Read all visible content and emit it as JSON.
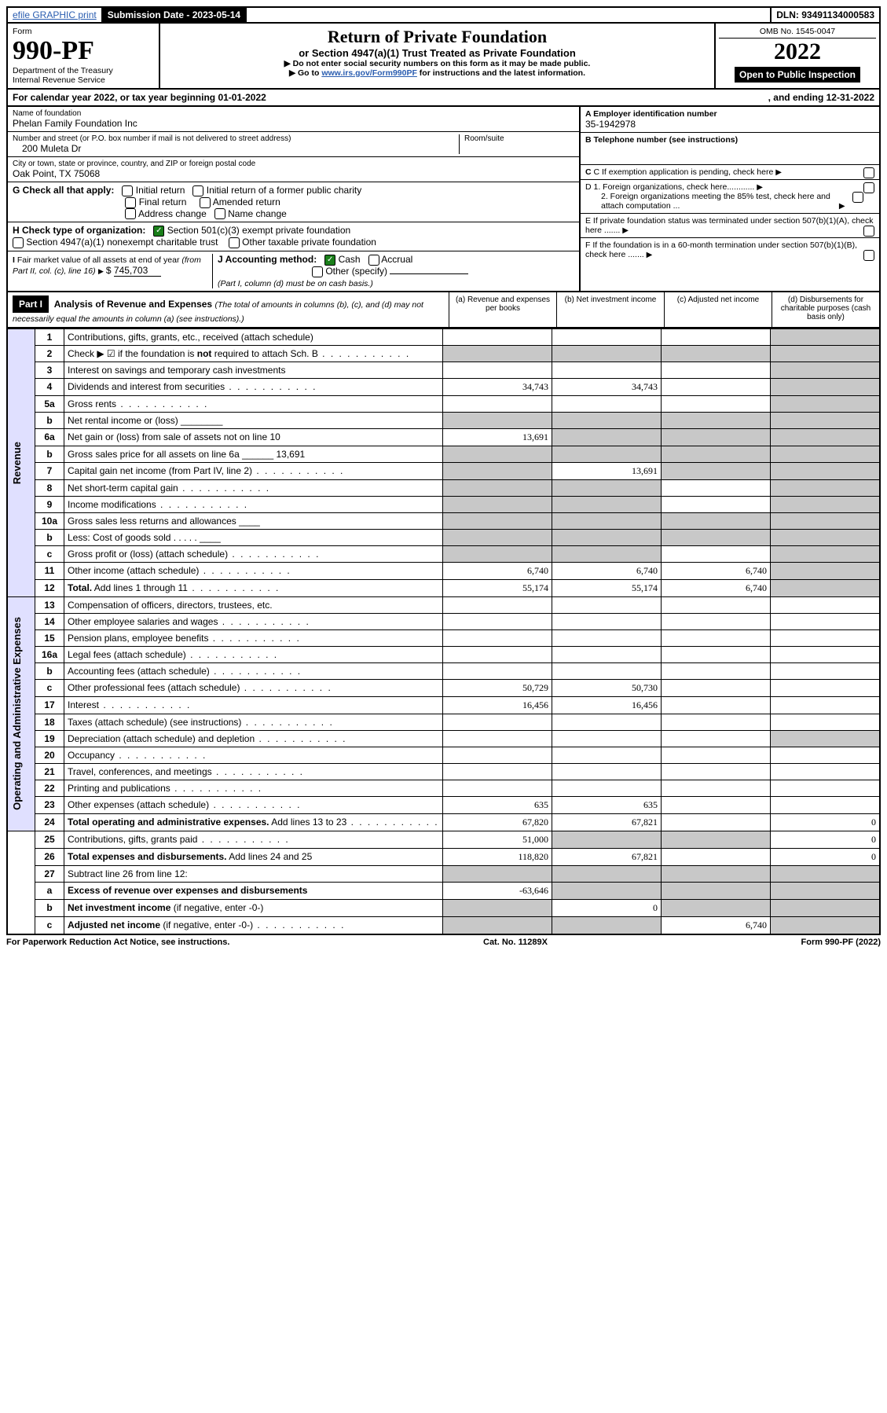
{
  "top": {
    "efile": "efile GRAPHIC print",
    "sublabel": "Submission Date - 2023-05-14",
    "dln": "DLN: 93491134000583"
  },
  "header": {
    "form_label": "Form",
    "form_no": "990-PF",
    "dept1": "Department of the Treasury",
    "dept2": "Internal Revenue Service",
    "title": "Return of Private Foundation",
    "subtitle": "or Section 4947(a)(1) Trust Treated as Private Foundation",
    "warn1": "▶ Do not enter social security numbers on this form as it may be made public.",
    "warn2a": "▶ Go to ",
    "warn2link": "www.irs.gov/Form990PF",
    "warn2b": " for instructions and the latest information.",
    "omb": "OMB No. 1545-0047",
    "year": "2022",
    "open": "Open to Public Inspection"
  },
  "cal": {
    "text": "For calendar year 2022, or tax year beginning 01-01-2022",
    "end": ", and ending 12-31-2022"
  },
  "info": {
    "name_label": "Name of foundation",
    "name": "Phelan Family Foundation Inc",
    "addr_label": "Number and street (or P.O. box number if mail is not delivered to street address)",
    "addr": "200 Muleta Dr",
    "room_label": "Room/suite",
    "city_label": "City or town, state or province, country, and ZIP or foreign postal code",
    "city": "Oak Point, TX  75068",
    "ein_label": "A Employer identification number",
    "ein": "35-1942978",
    "tel_label": "B Telephone number (see instructions)",
    "c_label": "C If exemption application is pending, check here",
    "d1": "D 1. Foreign organizations, check here............",
    "d2": "2. Foreign organizations meeting the 85% test, check here and attach computation ...",
    "e": "E  If private foundation status was terminated under section 507(b)(1)(A), check here .......",
    "f": "F  If the foundation is in a 60-month termination under section 507(b)(1)(B), check here .......",
    "g_label": "G Check all that apply:",
    "g_opts": [
      "Initial return",
      "Initial return of a former public charity",
      "Final return",
      "Amended return",
      "Address change",
      "Name change"
    ],
    "h_label": "H Check type of organization:",
    "h1": "Section 501(c)(3) exempt private foundation",
    "h2": "Section 4947(a)(1) nonexempt charitable trust",
    "h3": "Other taxable private foundation",
    "i_label": "I Fair market value of all assets at end of year (from Part II, col. (c), line 16)",
    "i_val": "745,703",
    "j_label": "J Accounting method:",
    "j_opts": [
      "Cash",
      "Accrual"
    ],
    "j_other": "Other (specify)",
    "j_note": "(Part I, column (d) must be on cash basis.)"
  },
  "part1": {
    "label": "Part I",
    "title": "Analysis of Revenue and Expenses",
    "note": " (The total of amounts in columns (b), (c), and (d) may not necessarily equal the amounts in column (a) (see instructions).)",
    "cols": [
      "(a)  Revenue and expenses per books",
      "(b)  Net investment income",
      "(c)  Adjusted net income",
      "(d)  Disbursements for charitable purposes (cash basis only)"
    ]
  },
  "side": {
    "rev": "Revenue",
    "exp": "Operating and Administrative Expenses"
  },
  "rows": [
    {
      "ln": "1",
      "txt": "Contributions, gifts, grants, etc., received (attach schedule)",
      "a": "",
      "b": "",
      "c": "",
      "d": "",
      "sd": true
    },
    {
      "ln": "2",
      "txt": "Check ▶ ☑ if the foundation is <b>not</b> required to attach Sch. B",
      "dots": true,
      "a": "",
      "b": "",
      "c": "",
      "d": "",
      "shadeAll": true
    },
    {
      "ln": "3",
      "txt": "Interest on savings and temporary cash investments",
      "a": "",
      "b": "",
      "c": "",
      "d": "",
      "sd": true
    },
    {
      "ln": "4",
      "txt": "Dividends and interest from securities",
      "dots": true,
      "a": "34,743",
      "b": "34,743",
      "c": "",
      "d": "",
      "sd": true
    },
    {
      "ln": "5a",
      "txt": "Gross rents",
      "dots": true,
      "a": "",
      "b": "",
      "c": "",
      "d": "",
      "sd": true
    },
    {
      "ln": "b",
      "txt": "Net rental income or (loss) ________",
      "a": "",
      "b": "",
      "c": "",
      "d": "",
      "shadeAll": true
    },
    {
      "ln": "6a",
      "txt": "Net gain or (loss) from sale of assets not on line 10",
      "a": "13,691",
      "b": "",
      "c": "",
      "d": "",
      "shadeBCD": true
    },
    {
      "ln": "b",
      "txt": "Gross sales price for all assets on line 6a ______ 13,691",
      "a": "",
      "b": "",
      "c": "",
      "d": "",
      "shadeAll": true
    },
    {
      "ln": "7",
      "txt": "Capital gain net income (from Part IV, line 2)",
      "dots": true,
      "a": "",
      "b": "13,691",
      "c": "",
      "d": "",
      "shadeA": true,
      "shadeCD": true
    },
    {
      "ln": "8",
      "txt": "Net short-term capital gain",
      "dots": true,
      "a": "",
      "b": "",
      "c": "",
      "d": "",
      "shadeABD": true
    },
    {
      "ln": "9",
      "txt": "Income modifications",
      "dots": true,
      "a": "",
      "b": "",
      "c": "",
      "d": "",
      "shadeABD": true
    },
    {
      "ln": "10a",
      "txt": "Gross sales less returns and allowances ____",
      "a": "",
      "b": "",
      "c": "",
      "d": "",
      "shadeAll": true
    },
    {
      "ln": "b",
      "txt": "Less: Cost of goods sold   .  .  .  .  . ____",
      "a": "",
      "b": "",
      "c": "",
      "d": "",
      "shadeAll": true
    },
    {
      "ln": "c",
      "txt": "Gross profit or (loss) (attach schedule)",
      "dots": true,
      "a": "",
      "b": "",
      "c": "",
      "d": "",
      "shadeABD": true
    },
    {
      "ln": "11",
      "txt": "Other income (attach schedule)",
      "dots": true,
      "a": "6,740",
      "b": "6,740",
      "c": "6,740",
      "d": "",
      "sd": true
    },
    {
      "ln": "12",
      "txt": "<b>Total.</b> Add lines 1 through 11",
      "dots": true,
      "a": "55,174",
      "b": "55,174",
      "c": "6,740",
      "d": "",
      "sd": true
    },
    {
      "ln": "13",
      "txt": "Compensation of officers, directors, trustees, etc.",
      "a": "",
      "b": "",
      "c": "",
      "d": ""
    },
    {
      "ln": "14",
      "txt": "Other employee salaries and wages",
      "dots": true,
      "a": "",
      "b": "",
      "c": "",
      "d": ""
    },
    {
      "ln": "15",
      "txt": "Pension plans, employee benefits",
      "dots": true,
      "a": "",
      "b": "",
      "c": "",
      "d": ""
    },
    {
      "ln": "16a",
      "txt": "Legal fees (attach schedule)",
      "dots": true,
      "a": "",
      "b": "",
      "c": "",
      "d": ""
    },
    {
      "ln": "b",
      "txt": "Accounting fees (attach schedule)",
      "dots": true,
      "a": "",
      "b": "",
      "c": "",
      "d": ""
    },
    {
      "ln": "c",
      "txt": "Other professional fees (attach schedule)",
      "dots": true,
      "a": "50,729",
      "b": "50,730",
      "c": "",
      "d": ""
    },
    {
      "ln": "17",
      "txt": "Interest",
      "dots": true,
      "a": "16,456",
      "b": "16,456",
      "c": "",
      "d": ""
    },
    {
      "ln": "18",
      "txt": "Taxes (attach schedule) (see instructions)",
      "dots": true,
      "a": "",
      "b": "",
      "c": "",
      "d": ""
    },
    {
      "ln": "19",
      "txt": "Depreciation (attach schedule) and depletion",
      "dots": true,
      "a": "",
      "b": "",
      "c": "",
      "d": "",
      "sd": true
    },
    {
      "ln": "20",
      "txt": "Occupancy",
      "dots": true,
      "a": "",
      "b": "",
      "c": "",
      "d": ""
    },
    {
      "ln": "21",
      "txt": "Travel, conferences, and meetings",
      "dots": true,
      "a": "",
      "b": "",
      "c": "",
      "d": ""
    },
    {
      "ln": "22",
      "txt": "Printing and publications",
      "dots": true,
      "a": "",
      "b": "",
      "c": "",
      "d": ""
    },
    {
      "ln": "23",
      "txt": "Other expenses (attach schedule)",
      "dots": true,
      "a": "635",
      "b": "635",
      "c": "",
      "d": ""
    },
    {
      "ln": "24",
      "txt": "<b>Total operating and administrative expenses.</b> Add lines 13 to 23",
      "dots": true,
      "a": "67,820",
      "b": "67,821",
      "c": "",
      "d": "0"
    },
    {
      "ln": "25",
      "txt": "Contributions, gifts, grants paid",
      "dots": true,
      "a": "51,000",
      "b": "",
      "c": "",
      "d": "0",
      "shadeBC": true
    },
    {
      "ln": "26",
      "txt": "<b>Total expenses and disbursements.</b> Add lines 24 and 25",
      "a": "118,820",
      "b": "67,821",
      "c": "",
      "d": "0"
    },
    {
      "ln": "27",
      "txt": "Subtract line 26 from line 12:",
      "a": "",
      "b": "",
      "c": "",
      "d": "",
      "shadeAll": true
    },
    {
      "ln": "a",
      "txt": "<b>Excess of revenue over expenses and disbursements</b>",
      "a": "-63,646",
      "b": "",
      "c": "",
      "d": "",
      "shadeBCD": true
    },
    {
      "ln": "b",
      "txt": "<b>Net investment income</b> (if negative, enter -0-)",
      "a": "",
      "b": "0",
      "c": "",
      "d": "",
      "shadeACD": true
    },
    {
      "ln": "c",
      "txt": "<b>Adjusted net income</b> (if negative, enter -0-)",
      "dots": true,
      "a": "",
      "b": "",
      "c": "6,740",
      "d": "",
      "shadeABD": true
    }
  ],
  "footer": {
    "left": "For Paperwork Reduction Act Notice, see instructions.",
    "mid": "Cat. No. 11289X",
    "right": "Form 990-PF (2022)"
  },
  "colors": {
    "shade": "#c8c8c8",
    "sideshade": "#e0e0ff"
  }
}
